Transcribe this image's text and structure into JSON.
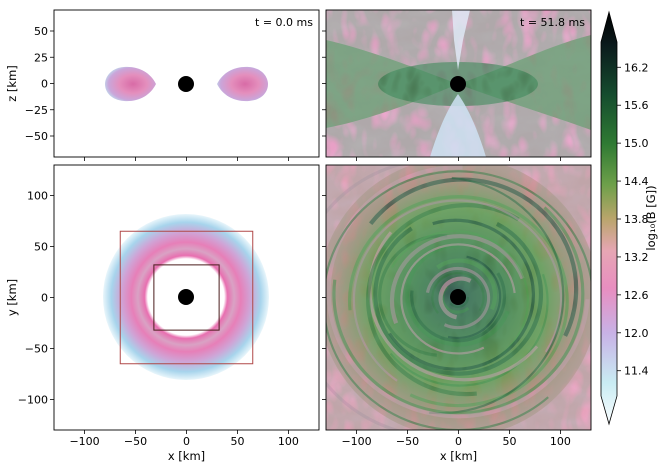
{
  "figure": {
    "colormap": [
      "#fafdff",
      "#c9ecf3",
      "#c8b2e6",
      "#e88ec0",
      "#e6a6b4",
      "#b8a56a",
      "#6ea04a",
      "#2f7a33",
      "#154c2e",
      "#0b1a1c",
      "#000000"
    ],
    "panels": [
      {
        "id": "top-left",
        "time_label": "t = 0.0 ms",
        "ylabel": "z [km]",
        "xlim": [
          -130,
          130
        ],
        "ylim": [
          -70,
          70
        ],
        "yticks": [
          "50",
          "25",
          "0",
          "−25",
          "−50"
        ],
        "ytick_values": [
          50,
          25,
          0,
          -25,
          -50
        ]
      },
      {
        "id": "top-right",
        "time_label": "t = 51.8 ms",
        "xlim": [
          -130,
          130
        ],
        "ylim": [
          -70,
          70
        ]
      },
      {
        "id": "bottom-left",
        "ylabel": "y [km]",
        "xlabel": "x [km]",
        "xlim": [
          -130,
          130
        ],
        "ylim": [
          -130,
          130
        ],
        "xticks": [
          "−100",
          "−50",
          "0",
          "50",
          "100"
        ],
        "xtick_values": [
          -100,
          -50,
          0,
          50,
          100
        ],
        "yticks": [
          "100",
          "50",
          "0",
          "−50",
          "−100"
        ],
        "ytick_values": [
          100,
          50,
          0,
          -50,
          -100
        ],
        "boxes": [
          {
            "half_width_km": 65,
            "color": "#b04848"
          },
          {
            "half_width_km": 32,
            "color": "#4a1c1c"
          }
        ]
      },
      {
        "id": "bottom-right",
        "xlabel": "x [km]",
        "xlim": [
          -130,
          130
        ],
        "ylim": [
          -130,
          130
        ],
        "xticks": [
          "−100",
          "−50",
          "0",
          "50",
          "100"
        ],
        "xtick_values": [
          -100,
          -50,
          0,
          50,
          100
        ]
      }
    ],
    "colorbar": {
      "label": "log₁₀(B [G])",
      "range": [
        11.0,
        16.6
      ],
      "ticks": [
        "16.2",
        "15.6",
        "15.0",
        "14.4",
        "13.8",
        "13.2",
        "12.6",
        "12.0",
        "11.4"
      ],
      "tick_values": [
        16.2,
        15.6,
        15.0,
        14.4,
        13.8,
        13.2,
        12.6,
        12.0,
        11.4
      ]
    }
  }
}
